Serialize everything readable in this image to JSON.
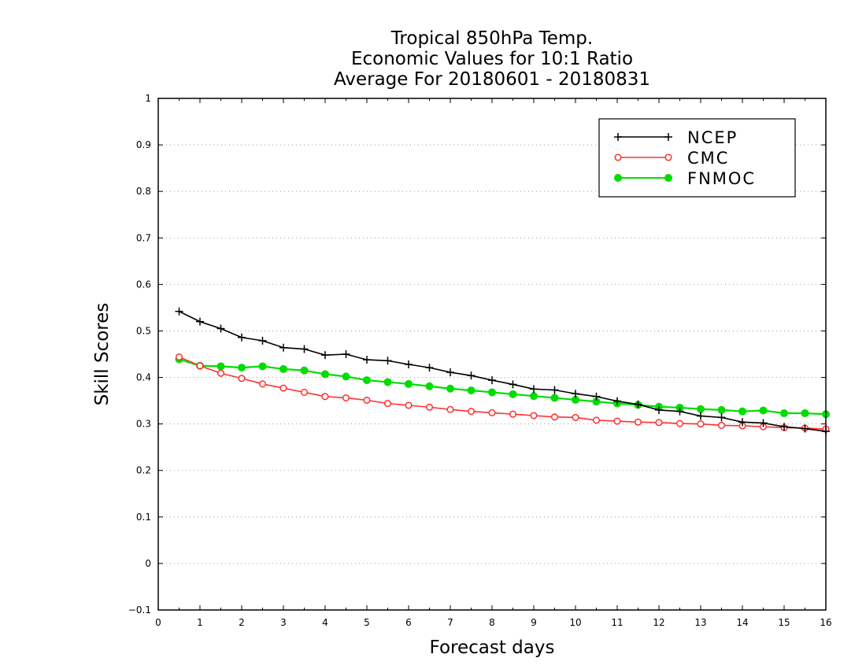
{
  "chart_data": {
    "type": "line",
    "title": [
      "Tropical 850hPa Temp.",
      "Economic Values for 10:1 Ratio",
      "Average For 20180601 - 20180831"
    ],
    "xlabel": "Forecast days",
    "ylabel": "Skill Scores",
    "xlim": [
      0,
      16
    ],
    "ylim": [
      -0.1,
      1
    ],
    "xticks": [
      "0",
      "1",
      "2",
      "3",
      "4",
      "5",
      "6",
      "7",
      "8",
      "9",
      "10",
      "11",
      "12",
      "13",
      "14",
      "15",
      "16"
    ],
    "yticks": [
      "−0.1",
      "0",
      "0.1",
      "0.2",
      "0.3",
      "0.4",
      "0.5",
      "0.6",
      "0.7",
      "0.8",
      "0.9",
      "1"
    ],
    "grid": "horizontal dotted",
    "legend_position": "top-right",
    "x": [
      0.5,
      1,
      1.5,
      2,
      2.5,
      3,
      3.5,
      4,
      4.5,
      5,
      5.5,
      6,
      6.5,
      7,
      7.5,
      8,
      8.5,
      9,
      9.5,
      10,
      10.5,
      11,
      11.5,
      12,
      12.5,
      13,
      13.5,
      14,
      14.5,
      15,
      15.5,
      16
    ],
    "series": [
      {
        "name": "NCEP",
        "color": "#000000",
        "marker": "plus",
        "values": [
          0.542,
          0.52,
          0.505,
          0.486,
          0.479,
          0.464,
          0.461,
          0.448,
          0.45,
          0.438,
          0.436,
          0.428,
          0.421,
          0.411,
          0.404,
          0.394,
          0.385,
          0.375,
          0.373,
          0.365,
          0.359,
          0.349,
          0.342,
          0.33,
          0.327,
          0.317,
          0.314,
          0.304,
          0.302,
          0.294,
          0.29,
          0.284
        ]
      },
      {
        "name": "CMC",
        "color": "#ff3030",
        "marker": "open-circle",
        "values": [
          0.444,
          0.425,
          0.409,
          0.398,
          0.386,
          0.377,
          0.368,
          0.359,
          0.356,
          0.351,
          0.344,
          0.34,
          0.336,
          0.331,
          0.327,
          0.324,
          0.321,
          0.318,
          0.315,
          0.314,
          0.308,
          0.306,
          0.304,
          0.303,
          0.301,
          0.3,
          0.297,
          0.296,
          0.294,
          0.292,
          0.291,
          0.289
        ]
      },
      {
        "name": "FNMOC",
        "color": "#00dd00",
        "marker": "filled-circle",
        "values": [
          0.439,
          0.425,
          0.424,
          0.421,
          0.424,
          0.418,
          0.415,
          0.407,
          0.402,
          0.394,
          0.39,
          0.386,
          0.381,
          0.376,
          0.372,
          0.368,
          0.364,
          0.36,
          0.356,
          0.352,
          0.348,
          0.344,
          0.341,
          0.337,
          0.335,
          0.332,
          0.33,
          0.327,
          0.329,
          0.323,
          0.323,
          0.321
        ]
      }
    ]
  }
}
